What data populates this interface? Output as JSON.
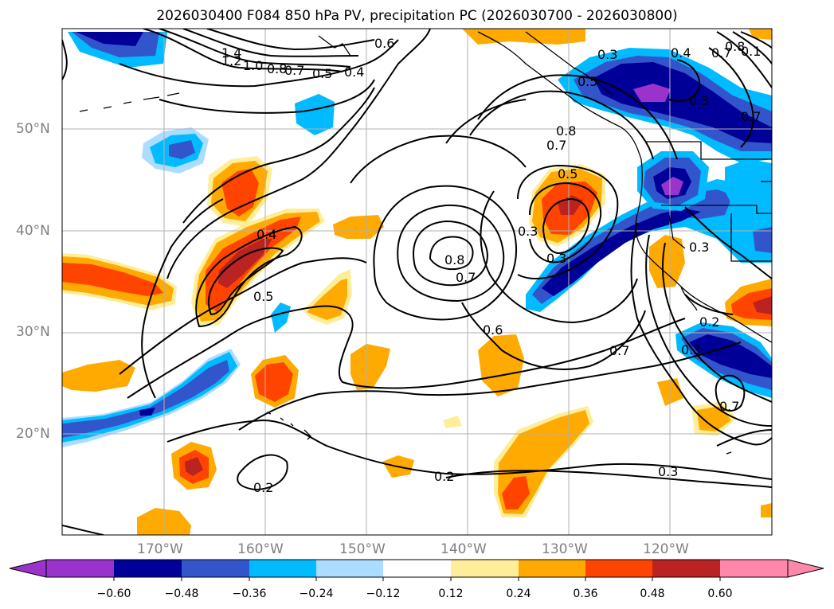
{
  "title": "2026030400 F084 850 hPa PV, precipitation PC (2026030700 - 2026030800)",
  "lat_ticks": [
    "50°N",
    "40°N",
    "30°N",
    "20°N"
  ],
  "lon_ticks": [
    "170°W",
    "160°W",
    "150°W",
    "140°W",
    "130°W",
    "120°W"
  ],
  "contour_labels": [
    "1.4",
    "1.2",
    "1.0",
    "0.8",
    "0.7",
    "0.5",
    "0.4",
    "0.6",
    "0.3",
    "0.4",
    "0.8",
    "0.5",
    "0.7",
    "0.5",
    "0.3",
    "0.7",
    "0.4",
    "0.5",
    "0.8",
    "0.7",
    "0.3",
    "0.3",
    "0.6",
    "0.7",
    "0.2",
    "0.7",
    "0.2",
    "0.2",
    "0.3",
    "0.3",
    "0.3",
    "0.7",
    "0.8",
    "0.1"
  ],
  "colorbar": {
    "ticks": [
      "−0.60",
      "−0.48",
      "−0.36",
      "−0.24",
      "−0.12",
      "0.12",
      "0.24",
      "0.36",
      "0.48",
      "0.60"
    ],
    "colors": [
      "#9933cc",
      "#000099",
      "#3355cc",
      "#00bbff",
      "#aaddff",
      "#ffffff",
      "#ffee99",
      "#ffaa00",
      "#ff4400",
      "#bb2222",
      "#ff88aa"
    ]
  },
  "colors": {
    "neg_strong": "#000099",
    "neg_purple": "#9933cc",
    "neg_mid": "#3355cc",
    "neg_light": "#00bbff",
    "neg_faint": "#aaddff",
    "pos_faint": "#ffee99",
    "pos_light": "#ffaa00",
    "pos_mid": "#ff4400",
    "pos_strong": "#bb2222"
  }
}
